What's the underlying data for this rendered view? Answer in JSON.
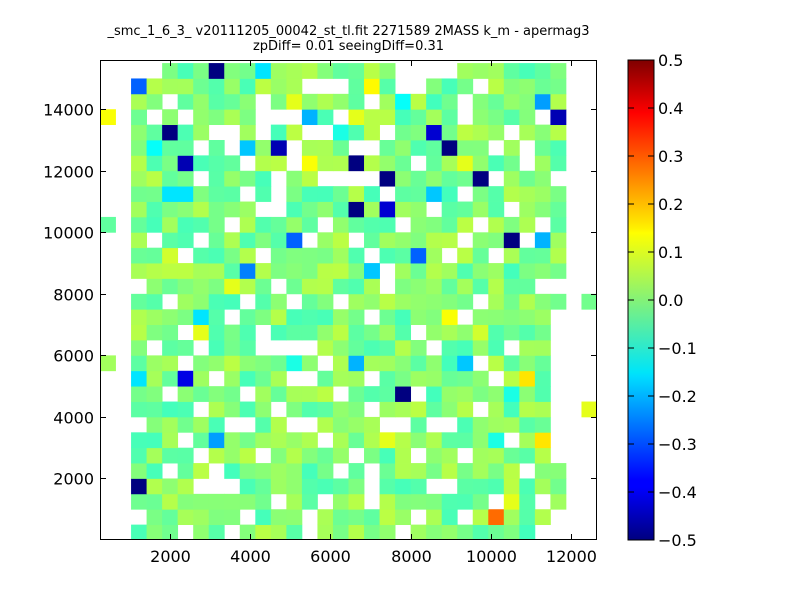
{
  "chart_data": {
    "type": "heatmap",
    "title": "_smc_1_6_3_ v20111205_00042_st_tl.fit 2271589 2MASS k_m - apermag3",
    "subtitle": "zpDiff= 0.01 seeingDiff=0.31",
    "xlabel": "",
    "ylabel": "",
    "xlim": [
      250,
      12650
    ],
    "ylim": [
      0,
      15600
    ],
    "xticks": [
      2000,
      4000,
      6000,
      8000,
      10000,
      12000
    ],
    "yticks": [
      2000,
      4000,
      6000,
      8000,
      10000,
      12000,
      14000
    ],
    "x_tick_labels": [
      "2000",
      "4000",
      "6000",
      "8000",
      "10000",
      "12000"
    ],
    "y_tick_labels": [
      "2000",
      "4000",
      "6000",
      "8000",
      "10000",
      "12000",
      "14000"
    ],
    "grid": false,
    "colorbar": {
      "colormap": "jet",
      "vmin": -0.5,
      "vmax": 0.5,
      "ticks": [
        0.5,
        0.4,
        0.3,
        0.2,
        0.1,
        0.0,
        -0.1,
        -0.2,
        -0.3,
        -0.4,
        -0.5
      ],
      "tick_labels": [
        "0.5",
        "0.4",
        "0.3",
        "0.2",
        "0.1",
        "0.0",
        "−0.1",
        "−0.2",
        "−0.3",
        "−0.4",
        "−0.5"
      ]
    },
    "grid_layout": {
      "x_start": 250,
      "x_bin": 387.5,
      "n_cols": 32,
      "y_start": 0,
      "y_bin": 500,
      "n_rows": 31
    },
    "cells": [
      [
        25,
        1,
        0.27
      ],
      [
        5,
        10,
        -0.4
      ],
      [
        27,
        10,
        0.15
      ],
      [
        28,
        6,
        0.15
      ],
      [
        2,
        3,
        -0.5
      ],
      [
        7,
        30,
        -0.5
      ],
      [
        14,
        23,
        -0.5
      ],
      [
        22,
        25,
        -0.5
      ],
      [
        16,
        21,
        -0.5
      ],
      [
        16,
        24,
        -0.5
      ],
      [
        18,
        23,
        -0.5
      ],
      [
        26,
        19,
        -0.5
      ],
      [
        24,
        23,
        -0.5
      ],
      [
        5,
        24,
        -0.45
      ],
      [
        4,
        26,
        -0.5
      ],
      [
        11,
        25,
        -0.45
      ],
      [
        18,
        21,
        -0.42
      ],
      [
        19,
        9,
        -0.5
      ],
      [
        21,
        26,
        -0.42
      ],
      [
        29,
        27,
        -0.45
      ],
      [
        2,
        29,
        -0.28
      ],
      [
        7,
        6,
        -0.22
      ],
      [
        9,
        17,
        -0.25
      ],
      [
        12,
        19,
        -0.28
      ],
      [
        5,
        22,
        -0.15
      ],
      [
        17,
        17,
        -0.18
      ],
      [
        20,
        18,
        -0.28
      ],
      [
        18,
        31,
        -0.22
      ],
      [
        16,
        11,
        -0.2
      ],
      [
        20,
        30,
        -0.2
      ],
      [
        21,
        22,
        -0.18
      ],
      [
        28,
        28,
        -0.22
      ],
      [
        28,
        19,
        -0.2
      ],
      [
        6,
        14,
        -0.15
      ],
      [
        5,
        27,
        -0.15
      ],
      [
        9,
        25,
        -0.18
      ],
      [
        10,
        30,
        -0.15
      ],
      [
        13,
        27,
        -0.2
      ],
      [
        4,
        22,
        -0.15
      ],
      [
        2,
        10,
        -0.15
      ],
      [
        23,
        11,
        -0.18
      ],
      [
        3,
        25,
        -0.12
      ],
      [
        19,
        28,
        -0.12
      ],
      [
        15,
        26,
        -0.1
      ],
      [
        12,
        11,
        -0.1
      ],
      [
        26,
        9,
        -0.1
      ],
      [
        25,
        6,
        -0.1
      ],
      [
        1,
        20,
        -0.05
      ],
      [
        0,
        27,
        0.12
      ],
      [
        17,
        29,
        0.13
      ],
      [
        13,
        30,
        0.05
      ],
      [
        22,
        14,
        0.12
      ],
      [
        6,
        13,
        0.1
      ],
      [
        8,
        16,
        0.1
      ],
      [
        16,
        27,
        0.1
      ],
      [
        18,
        6,
        0.1
      ],
      [
        21,
        17,
        0.05
      ],
      [
        13,
        24,
        0.12
      ],
      [
        23,
        24,
        0.1
      ],
      [
        26,
        2,
        0.1
      ],
      [
        30,
        8,
        0.05
      ],
      [
        31,
        8,
        0.1
      ],
      [
        12,
        28,
        0.1
      ],
      [
        24,
        13,
        0.08
      ],
      [
        10,
        24,
        0.05
      ],
      [
        4,
        18,
        0.08
      ],
      [
        14,
        12,
        0.05
      ],
      [
        11,
        21,
        0.05
      ],
      [
        25,
        16,
        0.05
      ],
      [
        19,
        12,
        0.05
      ],
      [
        8,
        7,
        0.07
      ],
      [
        26,
        22,
        0.05
      ]
    ],
    "cells_format": "[column_index, row_index, value]; unlisted cells follow the smooth field described in background_field, and listed empty bins are white",
    "background_field": {
      "mean": 0.0,
      "spread": 0.06
    },
    "empty_bins": [
      [
        0,
        30
      ],
      [
        1,
        30
      ],
      [
        2,
        30
      ],
      [
        3,
        30
      ],
      [
        19,
        30
      ],
      [
        20,
        30
      ],
      [
        21,
        30
      ],
      [
        22,
        30
      ],
      [
        30,
        30
      ],
      [
        31,
        30
      ],
      [
        0,
        29
      ],
      [
        1,
        29
      ],
      [
        13,
        29
      ],
      [
        14,
        29
      ],
      [
        15,
        29
      ],
      [
        19,
        29
      ],
      [
        20,
        29
      ],
      [
        24,
        29
      ],
      [
        30,
        29
      ],
      [
        31,
        29
      ],
      [
        0,
        28
      ],
      [
        1,
        28
      ],
      [
        4,
        28
      ],
      [
        10,
        28
      ],
      [
        17,
        28
      ],
      [
        23,
        28
      ],
      [
        30,
        28
      ],
      [
        31,
        28
      ],
      [
        1,
        27
      ],
      [
        3,
        27
      ],
      [
        5,
        27
      ],
      [
        10,
        27
      ],
      [
        11,
        27
      ],
      [
        12,
        27
      ],
      [
        15,
        27
      ],
      [
        23,
        27
      ],
      [
        28,
        27
      ],
      [
        30,
        27
      ],
      [
        31,
        27
      ],
      [
        0,
        26
      ],
      [
        1,
        26
      ],
      [
        7,
        26
      ],
      [
        8,
        26
      ],
      [
        10,
        26
      ],
      [
        13,
        26
      ],
      [
        14,
        26
      ],
      [
        18,
        26
      ],
      [
        26,
        26
      ],
      [
        30,
        26
      ],
      [
        31,
        26
      ],
      [
        0,
        25
      ],
      [
        1,
        25
      ],
      [
        6,
        25
      ],
      [
        8,
        25
      ],
      [
        12,
        25
      ],
      [
        16,
        25
      ],
      [
        17,
        25
      ],
      [
        25,
        25
      ],
      [
        27,
        25
      ],
      [
        30,
        25
      ],
      [
        31,
        25
      ],
      [
        0,
        24
      ],
      [
        1,
        24
      ],
      [
        9,
        24
      ],
      [
        12,
        24
      ],
      [
        20,
        24
      ],
      [
        27,
        24
      ],
      [
        30,
        24
      ],
      [
        31,
        24
      ],
      [
        0,
        23
      ],
      [
        1,
        23
      ],
      [
        6,
        23
      ],
      [
        11,
        23
      ],
      [
        14,
        23
      ],
      [
        15,
        23
      ],
      [
        16,
        23
      ],
      [
        17,
        23
      ],
      [
        25,
        23
      ],
      [
        29,
        23
      ],
      [
        30,
        23
      ],
      [
        31,
        23
      ],
      [
        0,
        22
      ],
      [
        1,
        22
      ],
      [
        9,
        22
      ],
      [
        11,
        22
      ],
      [
        18,
        22
      ],
      [
        23,
        22
      ],
      [
        30,
        22
      ],
      [
        31,
        22
      ],
      [
        0,
        21
      ],
      [
        1,
        21
      ],
      [
        10,
        21
      ],
      [
        11,
        21
      ],
      [
        21,
        21
      ],
      [
        26,
        21
      ],
      [
        30,
        21
      ],
      [
        31,
        21
      ],
      [
        1,
        20
      ],
      [
        8,
        20
      ],
      [
        14,
        20
      ],
      [
        19,
        20
      ],
      [
        24,
        20
      ],
      [
        28,
        20
      ],
      [
        30,
        20
      ],
      [
        31,
        20
      ],
      [
        0,
        19
      ],
      [
        1,
        19
      ],
      [
        3,
        19
      ],
      [
        6,
        19
      ],
      [
        13,
        19
      ],
      [
        16,
        19
      ],
      [
        23,
        19
      ],
      [
        27,
        19
      ],
      [
        30,
        19
      ],
      [
        31,
        19
      ],
      [
        0,
        18
      ],
      [
        1,
        18
      ],
      [
        5,
        18
      ],
      [
        10,
        18
      ],
      [
        17,
        18
      ],
      [
        22,
        18
      ],
      [
        25,
        18
      ],
      [
        30,
        18
      ],
      [
        31,
        18
      ],
      [
        0,
        17
      ],
      [
        1,
        17
      ],
      [
        18,
        17
      ],
      [
        30,
        17
      ],
      [
        31,
        17
      ],
      [
        0,
        16
      ],
      [
        1,
        16
      ],
      [
        2,
        16
      ],
      [
        11,
        16
      ],
      [
        18,
        16
      ],
      [
        28,
        16
      ],
      [
        29,
        16
      ],
      [
        30,
        16
      ],
      [
        31,
        16
      ],
      [
        0,
        15
      ],
      [
        1,
        15
      ],
      [
        4,
        15
      ],
      [
        9,
        15
      ],
      [
        12,
        15
      ],
      [
        15,
        15
      ],
      [
        24,
        15
      ],
      [
        30,
        15
      ],
      [
        0,
        14
      ],
      [
        1,
        14
      ],
      [
        8,
        14
      ],
      [
        17,
        14
      ],
      [
        23,
        14
      ],
      [
        29,
        14
      ],
      [
        30,
        14
      ],
      [
        31,
        14
      ],
      [
        0,
        13
      ],
      [
        1,
        13
      ],
      [
        5,
        13
      ],
      [
        10,
        13
      ],
      [
        20,
        13
      ],
      [
        29,
        13
      ],
      [
        30,
        13
      ],
      [
        31,
        13
      ],
      [
        0,
        12
      ],
      [
        1,
        12
      ],
      [
        3,
        12
      ],
      [
        6,
        12
      ],
      [
        10,
        12
      ],
      [
        11,
        12
      ],
      [
        12,
        12
      ],
      [
        13,
        12
      ],
      [
        21,
        12
      ],
      [
        26,
        12
      ],
      [
        29,
        12
      ],
      [
        30,
        12
      ],
      [
        31,
        12
      ],
      [
        1,
        11
      ],
      [
        5,
        11
      ],
      [
        14,
        11
      ],
      [
        24,
        11
      ],
      [
        29,
        11
      ],
      [
        30,
        11
      ],
      [
        31,
        11
      ],
      [
        0,
        10
      ],
      [
        1,
        10
      ],
      [
        7,
        10
      ],
      [
        12,
        10
      ],
      [
        13,
        10
      ],
      [
        17,
        10
      ],
      [
        25,
        10
      ],
      [
        29,
        10
      ],
      [
        30,
        10
      ],
      [
        31,
        10
      ],
      [
        0,
        9
      ],
      [
        1,
        9
      ],
      [
        4,
        9
      ],
      [
        9,
        9
      ],
      [
        15,
        9
      ],
      [
        20,
        9
      ],
      [
        29,
        9
      ],
      [
        30,
        9
      ],
      [
        31,
        9
      ],
      [
        0,
        8
      ],
      [
        1,
        8
      ],
      [
        6,
        8
      ],
      [
        11,
        8
      ],
      [
        17,
        8
      ],
      [
        24,
        8
      ],
      [
        29,
        8
      ],
      [
        30,
        8
      ],
      [
        0,
        7
      ],
      [
        1,
        7
      ],
      [
        2,
        7
      ],
      [
        8,
        7
      ],
      [
        9,
        7
      ],
      [
        12,
        7
      ],
      [
        13,
        7
      ],
      [
        18,
        7
      ],
      [
        19,
        7
      ],
      [
        21,
        7
      ],
      [
        22,
        7
      ],
      [
        29,
        7
      ],
      [
        30,
        7
      ],
      [
        31,
        7
      ],
      [
        0,
        6
      ],
      [
        1,
        6
      ],
      [
        5,
        6
      ],
      [
        14,
        6
      ],
      [
        26,
        6
      ],
      [
        29,
        6
      ],
      [
        30,
        6
      ],
      [
        31,
        6
      ],
      [
        0,
        5
      ],
      [
        1,
        5
      ],
      [
        6,
        5
      ],
      [
        10,
        5
      ],
      [
        16,
        5
      ],
      [
        20,
        5
      ],
      [
        23,
        5
      ],
      [
        29,
        5
      ],
      [
        30,
        5
      ],
      [
        31,
        5
      ],
      [
        0,
        4
      ],
      [
        1,
        4
      ],
      [
        4,
        4
      ],
      [
        7,
        4
      ],
      [
        15,
        4
      ],
      [
        17,
        4
      ],
      [
        27,
        4
      ],
      [
        30,
        4
      ],
      [
        31,
        4
      ],
      [
        0,
        3
      ],
      [
        1,
        3
      ],
      [
        6,
        3
      ],
      [
        7,
        3
      ],
      [
        8,
        3
      ],
      [
        17,
        3
      ],
      [
        21,
        3
      ],
      [
        22,
        3
      ],
      [
        30,
        3
      ],
      [
        31,
        3
      ],
      [
        0,
        2
      ],
      [
        1,
        2
      ],
      [
        11,
        2
      ],
      [
        14,
        2
      ],
      [
        17,
        2
      ],
      [
        25,
        2
      ],
      [
        28,
        2
      ],
      [
        30,
        2
      ],
      [
        31,
        2
      ],
      [
        0,
        1
      ],
      [
        1,
        1
      ],
      [
        2,
        1
      ],
      [
        9,
        1
      ],
      [
        13,
        1
      ],
      [
        20,
        1
      ],
      [
        23,
        1
      ],
      [
        29,
        1
      ],
      [
        30,
        1
      ],
      [
        31,
        1
      ],
      [
        0,
        0
      ],
      [
        1,
        0
      ],
      [
        5,
        0
      ],
      [
        8,
        0
      ],
      [
        13,
        0
      ],
      [
        19,
        0
      ],
      [
        28,
        0
      ],
      [
        29,
        0
      ],
      [
        30,
        0
      ],
      [
        31,
        0
      ]
    ]
  }
}
